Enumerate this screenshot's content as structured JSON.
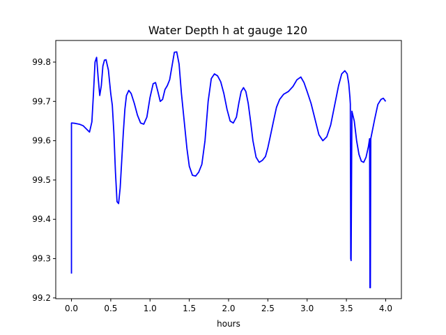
{
  "chart_data": {
    "type": "line",
    "title": "Water Depth h at gauge 120",
    "xlabel": "hours",
    "ylabel": "",
    "xlim": [
      -0.2,
      4.2
    ],
    "ylim": [
      99.198,
      99.855
    ],
    "xticks": [
      0.0,
      0.5,
      1.0,
      1.5,
      2.0,
      2.5,
      3.0,
      3.5,
      4.0
    ],
    "xtick_labels": [
      "0.0",
      "0.5",
      "1.0",
      "1.5",
      "2.0",
      "2.5",
      "3.0",
      "3.5",
      "4.0"
    ],
    "yticks": [
      99.2,
      99.3,
      99.4,
      99.5,
      99.6,
      99.7,
      99.8
    ],
    "ytick_labels": [
      "99.2",
      "99.3",
      "99.4",
      "99.5",
      "99.6",
      "99.7",
      "99.8"
    ],
    "grid": false,
    "line_color": "#0000ff",
    "series": [
      {
        "name": "",
        "x": [
          0.0,
          0.0,
          0.01,
          0.05,
          0.1,
          0.15,
          0.2,
          0.23,
          0.26,
          0.28,
          0.3,
          0.32,
          0.34,
          0.36,
          0.38,
          0.4,
          0.42,
          0.44,
          0.47,
          0.5,
          0.52,
          0.54,
          0.56,
          0.58,
          0.6,
          0.62,
          0.64,
          0.66,
          0.68,
          0.7,
          0.73,
          0.76,
          0.8,
          0.84,
          0.88,
          0.92,
          0.96,
          1.0,
          1.04,
          1.07,
          1.1,
          1.13,
          1.16,
          1.19,
          1.22,
          1.25,
          1.28,
          1.31,
          1.34,
          1.37,
          1.4,
          1.42,
          1.44,
          1.47,
          1.5,
          1.54,
          1.58,
          1.62,
          1.66,
          1.7,
          1.74,
          1.78,
          1.82,
          1.86,
          1.9,
          1.94,
          1.98,
          2.02,
          2.06,
          2.1,
          2.13,
          2.16,
          2.19,
          2.22,
          2.25,
          2.28,
          2.31,
          2.35,
          2.39,
          2.43,
          2.47,
          2.5,
          2.53,
          2.57,
          2.61,
          2.65,
          2.7,
          2.76,
          2.82,
          2.87,
          2.92,
          2.96,
          3.0,
          3.05,
          3.1,
          3.15,
          3.2,
          3.25,
          3.3,
          3.35,
          3.4,
          3.44,
          3.48,
          3.51,
          3.53,
          3.545,
          3.55,
          3.555,
          3.56,
          3.57,
          3.6,
          3.63,
          3.66,
          3.69,
          3.72,
          3.75,
          3.78,
          3.79,
          3.795,
          3.8,
          3.805,
          3.81,
          3.83,
          3.86,
          3.9,
          3.94,
          3.97,
          4.0
        ],
        "y": [
          99.262,
          99.645,
          99.645,
          99.644,
          99.642,
          99.638,
          99.628,
          99.622,
          99.648,
          99.72,
          99.8,
          99.812,
          99.76,
          99.715,
          99.74,
          99.79,
          99.805,
          99.806,
          99.78,
          99.72,
          99.69,
          99.62,
          99.52,
          99.445,
          99.44,
          99.48,
          99.55,
          99.62,
          99.68,
          99.715,
          99.728,
          99.72,
          99.695,
          99.665,
          99.645,
          99.642,
          99.66,
          99.71,
          99.745,
          99.748,
          99.725,
          99.7,
          99.705,
          99.73,
          99.74,
          99.755,
          99.79,
          99.825,
          99.826,
          99.795,
          99.72,
          99.68,
          99.64,
          99.58,
          99.535,
          99.512,
          99.51,
          99.52,
          99.54,
          99.6,
          99.7,
          99.758,
          99.77,
          99.765,
          99.75,
          99.72,
          99.68,
          99.65,
          99.645,
          99.66,
          99.695,
          99.725,
          99.735,
          99.725,
          99.695,
          99.65,
          99.6,
          99.558,
          99.545,
          99.55,
          99.56,
          99.582,
          99.61,
          99.648,
          99.685,
          99.705,
          99.718,
          99.725,
          99.738,
          99.755,
          99.762,
          99.748,
          99.725,
          99.695,
          99.655,
          99.615,
          99.6,
          99.61,
          99.64,
          99.69,
          99.74,
          99.77,
          99.778,
          99.77,
          99.745,
          99.71,
          99.693,
          99.3,
          99.295,
          99.675,
          99.65,
          99.6,
          99.565,
          99.548,
          99.545,
          99.558,
          99.585,
          99.598,
          99.605,
          99.226,
          99.226,
          99.605,
          99.625,
          99.655,
          99.692,
          99.705,
          99.708,
          99.7
        ]
      }
    ]
  }
}
